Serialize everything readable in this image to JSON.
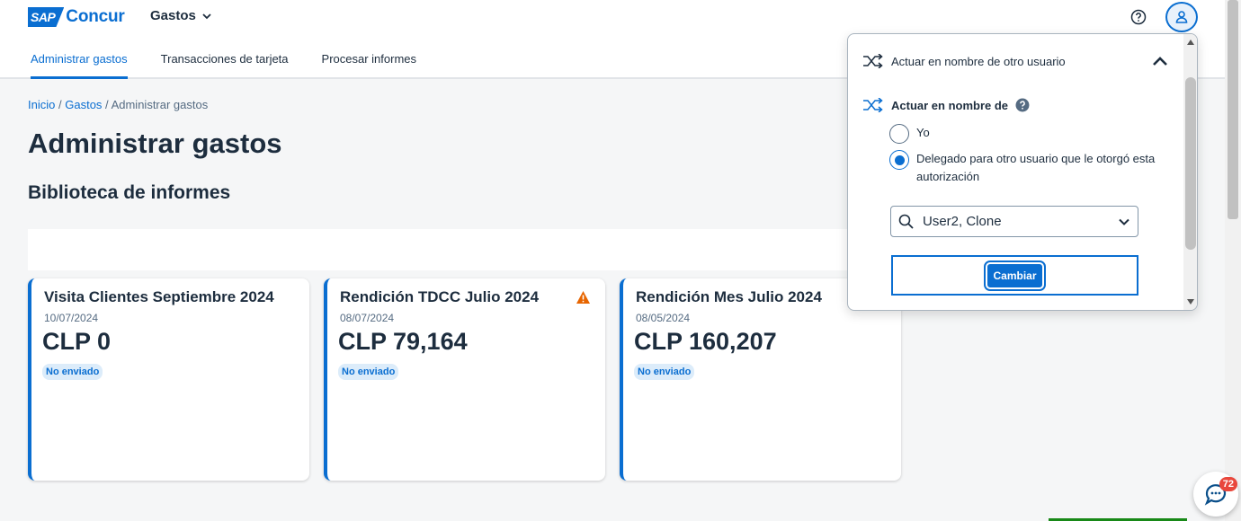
{
  "header": {
    "logo_sap": "SAP",
    "logo_concur": "Concur",
    "product_menu": "Gastos",
    "help_icon": "help-circle-icon",
    "user_icon": "user-icon"
  },
  "tabs": [
    {
      "label": "Administrar gastos",
      "active": true
    },
    {
      "label": "Transacciones de tarjeta",
      "active": false
    },
    {
      "label": "Procesar informes",
      "active": false
    }
  ],
  "breadcrumb": {
    "home": "Inicio",
    "sep1": "/",
    "gastos": "Gastos",
    "sep2": "/",
    "current": "Administrar gastos"
  },
  "page_title": "Administrar gastos",
  "section_title": "Biblioteca de informes",
  "reports": [
    {
      "title": "Visita Clientes Septiembre 2024",
      "date": "10/07/2024",
      "amount": "CLP 0",
      "status": "No enviado",
      "warning": false
    },
    {
      "title": "Rendición TDCC Julio 2024",
      "date": "08/07/2024",
      "amount": "CLP 79,164",
      "status": "No enviado",
      "warning": true
    },
    {
      "title": "Rendición Mes Julio 2024",
      "date": "08/05/2024",
      "amount": "CLP 160,207",
      "status": "No enviado",
      "warning": false
    }
  ],
  "popover": {
    "header_label": "Actuar en nombre de otro usuario",
    "delegate_label": "Actuar en nombre de",
    "option_self": "Yo",
    "option_delegate": "Delegado para otro usuario que le otorgó esta autorización",
    "selected_option": "delegate",
    "selected_user": "User2, Clone",
    "change_button": "Cambiar"
  },
  "chat": {
    "badge_count": "72"
  },
  "colors": {
    "accent": "#0a6ed1",
    "warning": "#e76500",
    "badge_bg": "#dcecfa",
    "chat_badge": "#e9473c"
  }
}
